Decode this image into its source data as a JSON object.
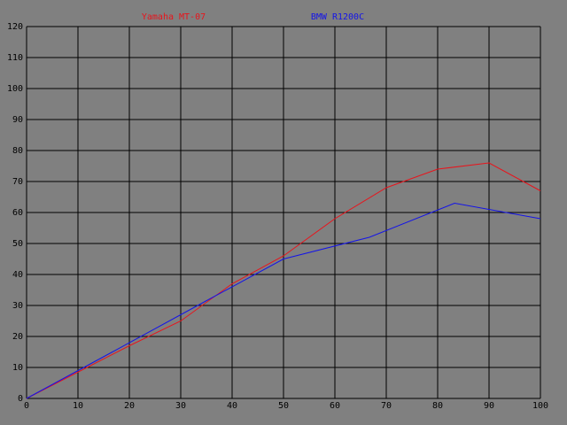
{
  "chart_data": {
    "type": "line",
    "series": [
      {
        "name": "Yamaha MT-07",
        "color": "#e8141c",
        "x": [
          0,
          10,
          20,
          30,
          40,
          50,
          60,
          70,
          80,
          90,
          100
        ],
        "values": [
          0,
          8.5,
          17,
          25,
          37,
          46,
          58,
          68,
          74,
          76,
          67
        ]
      },
      {
        "name": "BMW R1200C",
        "color": "#1414e8",
        "x": [
          0,
          16.7,
          33.3,
          50,
          66.7,
          83.3,
          100
        ],
        "values": [
          0,
          15,
          30,
          45,
          52,
          63,
          58
        ]
      }
    ],
    "xlim": [
      0,
      100
    ],
    "xticks": [
      0,
      10,
      20,
      30,
      40,
      50,
      60,
      70,
      80,
      90,
      100
    ],
    "ylim": [
      0,
      120
    ],
    "yticks": [
      0,
      10,
      20,
      30,
      40,
      50,
      60,
      70,
      80,
      90,
      100,
      110,
      120
    ],
    "grid": true
  }
}
